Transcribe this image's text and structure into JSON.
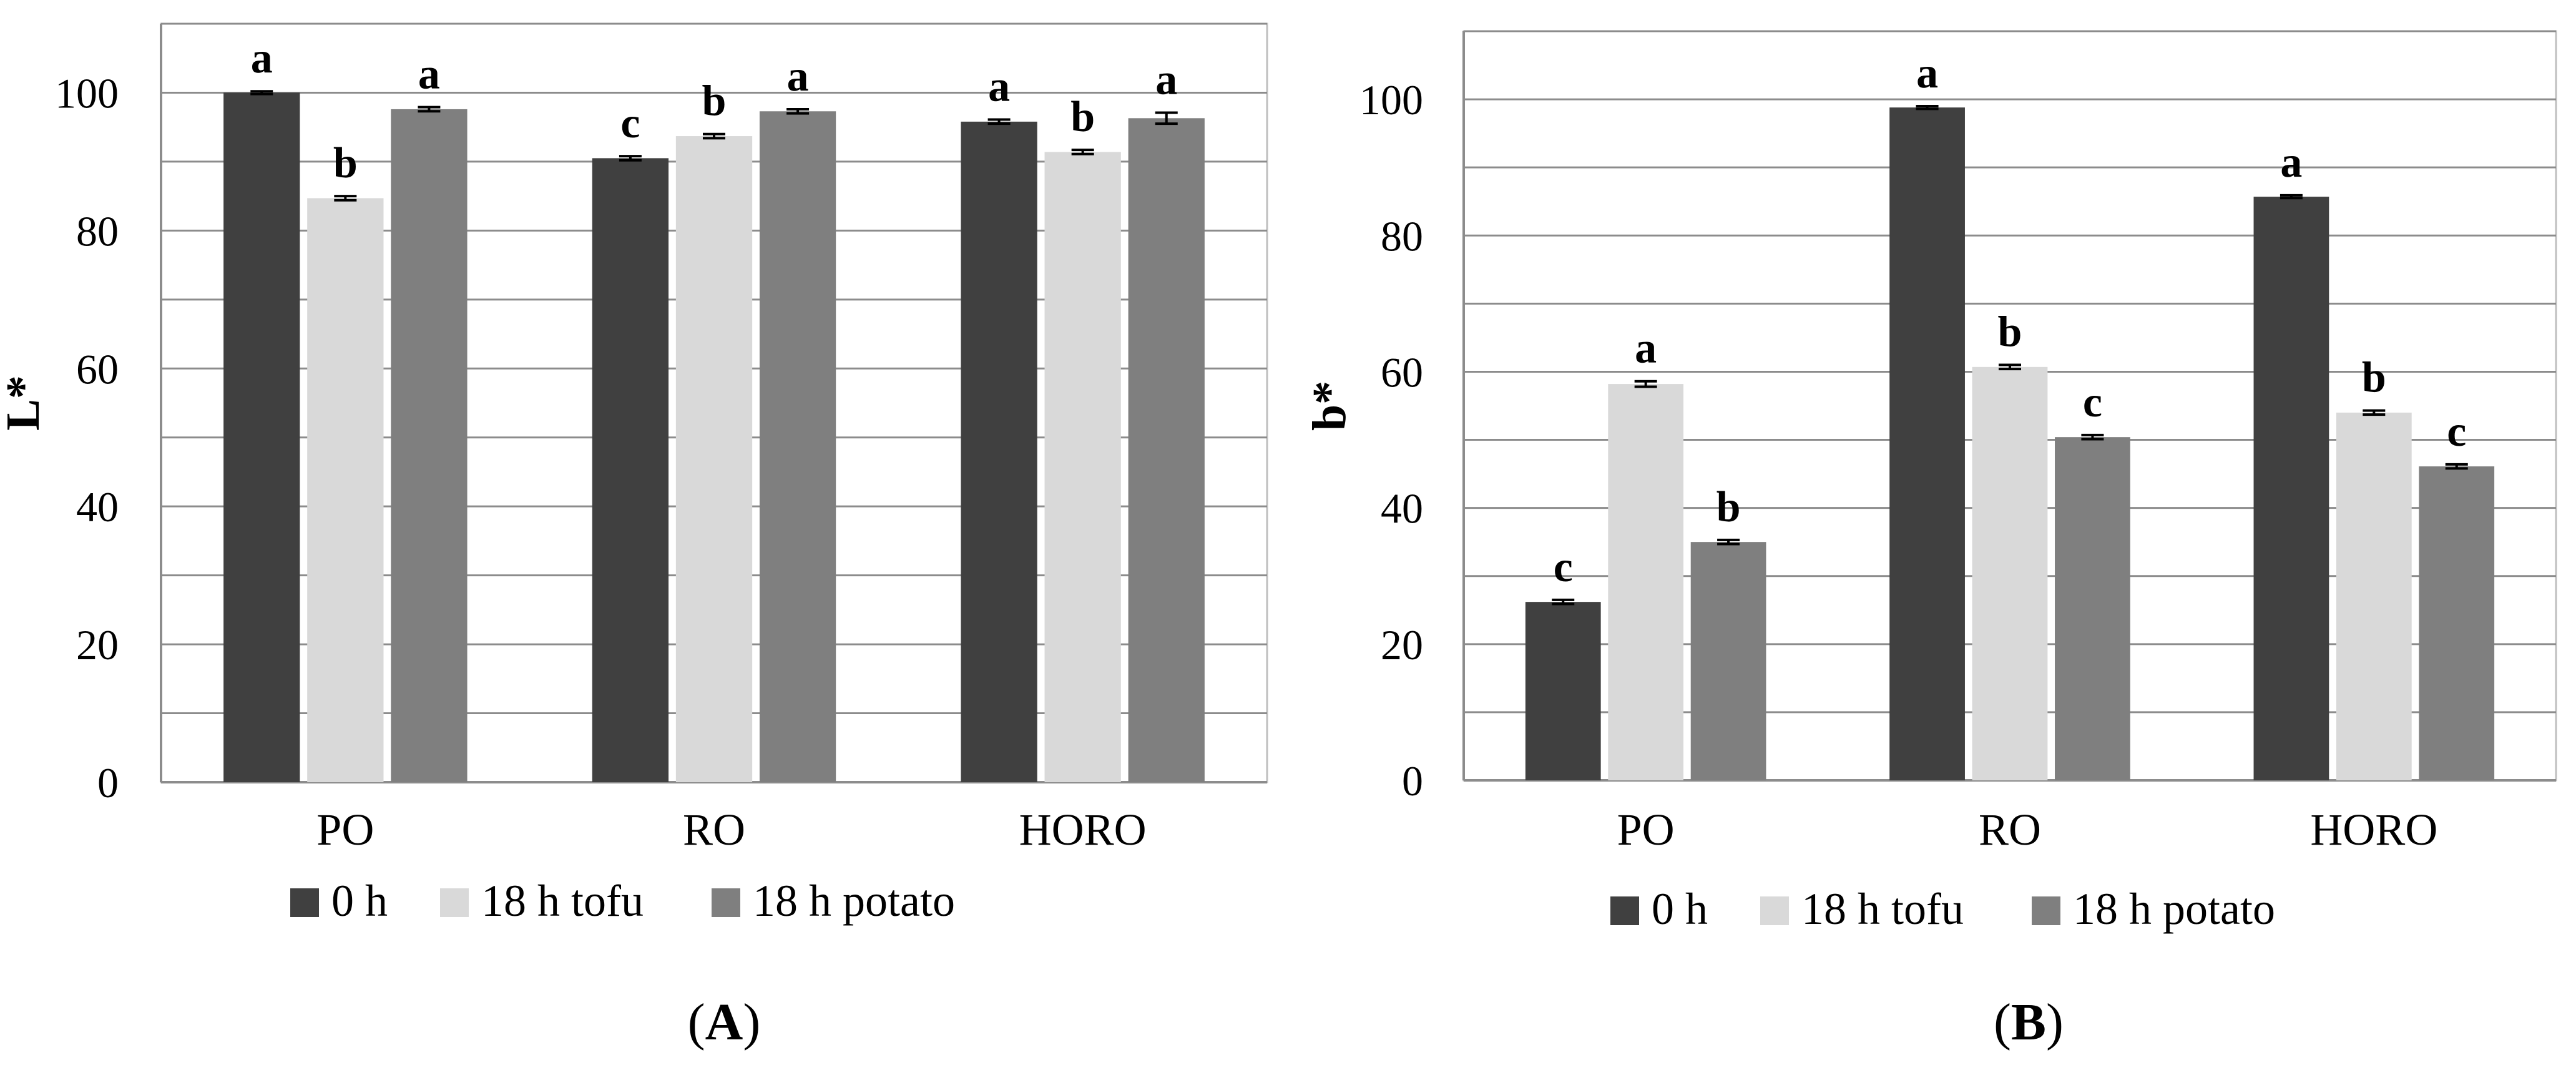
{
  "colors": {
    "series_0h": "#404040",
    "series_18h_tofu": "#d9d9d9",
    "series_18h_potato": "#7f7f7f",
    "gridline": "#8c8c8c",
    "axis": "#8c8c8c",
    "frame": "#bfbfbf",
    "error_bar": "#000000"
  },
  "chart_data": [
    {
      "type": "bar",
      "panel_label": {
        "open": "(",
        "letter": "A",
        "close": ")"
      },
      "ylabel": "L*",
      "ylim": [
        0,
        110
      ],
      "yticks": [
        "0",
        "20",
        "40",
        "60",
        "80",
        "100"
      ],
      "grid": true,
      "legend_position": "bottom",
      "categories": [
        "PO",
        "RO",
        "HORO"
      ],
      "series": [
        {
          "name": "0 h",
          "values": [
            100.0,
            90.5,
            95.8
          ],
          "errors": [
            0.2,
            0.3,
            0.3
          ],
          "letters": [
            "a",
            "c",
            "a"
          ]
        },
        {
          "name": "18 h tofu",
          "values": [
            84.7,
            93.7,
            91.4
          ],
          "errors": [
            0.3,
            0.3,
            0.3
          ],
          "letters": [
            "b",
            "b",
            "b"
          ]
        },
        {
          "name": "18 h potato",
          "values": [
            97.6,
            97.3,
            96.3
          ],
          "errors": [
            0.3,
            0.3,
            0.8
          ],
          "letters": [
            "a",
            "a",
            "a"
          ]
        }
      ]
    },
    {
      "type": "bar",
      "panel_label": {
        "open": "(",
        "letter": "B",
        "close": ")"
      },
      "ylabel": "b*",
      "ylim": [
        0,
        110
      ],
      "yticks": [
        "0",
        "20",
        "40",
        "60",
        "80",
        "100"
      ],
      "grid": true,
      "legend_position": "bottom",
      "categories": [
        "PO",
        "RO",
        "HORO"
      ],
      "series": [
        {
          "name": "0 h",
          "values": [
            26.2,
            98.8,
            85.7
          ],
          "errors": [
            0.3,
            0.2,
            0.2
          ],
          "letters": [
            "c",
            "a",
            "a"
          ]
        },
        {
          "name": "18 h tofu",
          "values": [
            58.2,
            60.7,
            54.0
          ],
          "errors": [
            0.4,
            0.3,
            0.3
          ],
          "letters": [
            "a",
            "b",
            "b"
          ]
        },
        {
          "name": "18 h potato",
          "values": [
            35.0,
            50.4,
            46.1
          ],
          "errors": [
            0.3,
            0.3,
            0.3
          ],
          "letters": [
            "b",
            "c",
            "c"
          ]
        }
      ]
    }
  ]
}
